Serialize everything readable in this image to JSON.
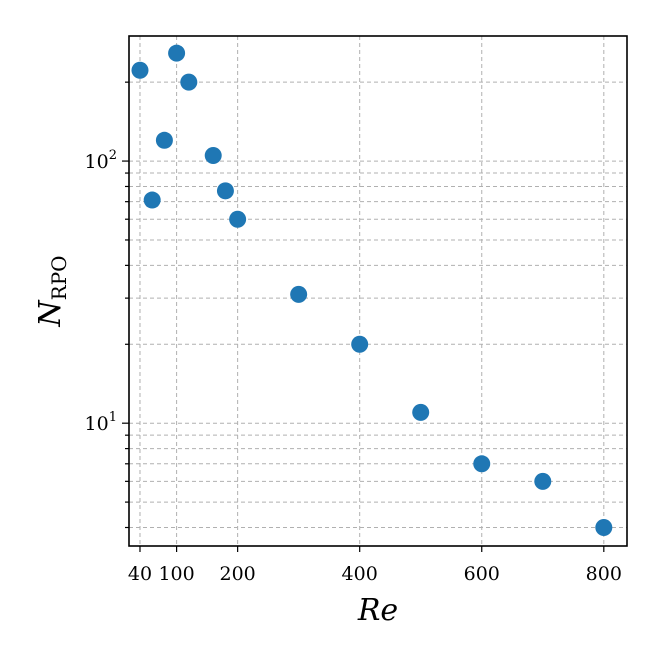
{
  "chart_data": {
    "type": "scatter",
    "xlabel": "Re",
    "ylabel_main": "N",
    "ylabel_sub": "RPO",
    "xlim": [
      22,
      838
    ],
    "ylim": [
      3.4,
      300
    ],
    "yscale": "log",
    "x_ticks": [
      40,
      100,
      200,
      400,
      600,
      800
    ],
    "x_tick_labels": [
      "40",
      "100",
      "200",
      "400",
      "600",
      "800"
    ],
    "y_major_ticks": [
      10,
      100
    ],
    "y_major_tick_labels": [
      "10",
      "10"
    ],
    "y_major_tick_exponents": [
      "1",
      "2"
    ],
    "y_minor_ticks": [
      4,
      5,
      6,
      7,
      8,
      9,
      20,
      30,
      40,
      50,
      60,
      70,
      80,
      90,
      200
    ],
    "grid": true,
    "color": "#1f77b4",
    "points": [
      {
        "x": 40,
        "y": 222
      },
      {
        "x": 60,
        "y": 71
      },
      {
        "x": 80,
        "y": 120
      },
      {
        "x": 100,
        "y": 258
      },
      {
        "x": 120,
        "y": 200
      },
      {
        "x": 160,
        "y": 105
      },
      {
        "x": 180,
        "y": 77
      },
      {
        "x": 200,
        "y": 60
      },
      {
        "x": 300,
        "y": 31
      },
      {
        "x": 400,
        "y": 20
      },
      {
        "x": 500,
        "y": 11
      },
      {
        "x": 600,
        "y": 7
      },
      {
        "x": 700,
        "y": 6
      },
      {
        "x": 800,
        "y": 4
      }
    ]
  }
}
